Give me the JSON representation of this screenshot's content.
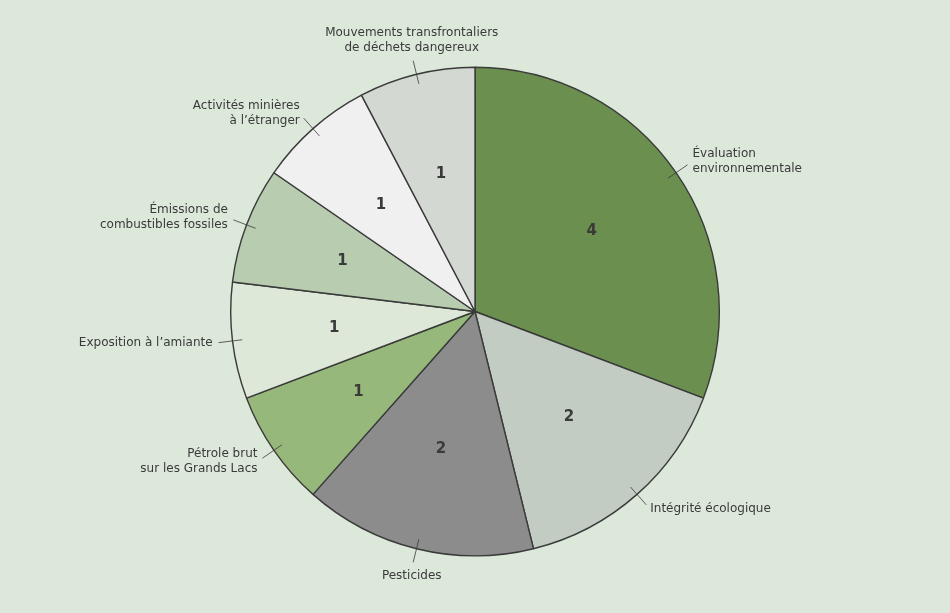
{
  "chart_data": {
    "type": "pie",
    "categories": [
      "Évaluation\nenvironnementale",
      "Intégrité écologique",
      "Pesticides",
      "Pétrole brut\nsur les Grands Lacs",
      "Exposition à l’amiante",
      "Émissions de\ncombustibles fossiles",
      "Activités minières\nà l’étranger",
      "Mouvements transfrontaliers\nde déchets dangereux"
    ],
    "values": [
      4,
      2,
      2,
      1,
      1,
      1,
      1,
      1
    ],
    "colors": [
      "#6b8f4e",
      "#c2ccc2",
      "#8c8c8c",
      "#96b87a",
      "#dde8d8",
      "#b8ccb0",
      "#f0f0f0",
      "#d4d8d2"
    ],
    "data_labels": true
  }
}
